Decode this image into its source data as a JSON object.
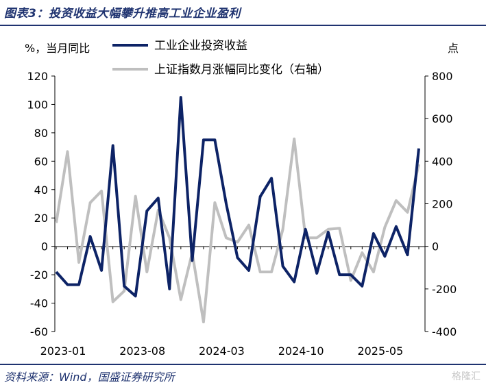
{
  "figure": {
    "title": "图表3：投资收益大幅攀升推高工业企业盈利",
    "source": "资料来源：Wind，国盛证券研究所",
    "watermark": "格隆汇"
  },
  "chart_data": {
    "type": "line",
    "y_left_unit": "%，当月同比",
    "y_right_unit": "点",
    "ylim_left": [
      -60,
      120
    ],
    "ylim_right": [
      -400,
      800
    ],
    "yticks_left": [
      -60,
      -40,
      -20,
      0,
      20,
      40,
      60,
      80,
      100,
      120
    ],
    "yticks_right": [
      -400,
      -200,
      0,
      200,
      400,
      600,
      800
    ],
    "x_tick_labels": [
      "2023-01",
      "2023-08",
      "2024-03",
      "2024-10",
      "2025-05"
    ],
    "x_tick_indices": [
      0,
      7,
      14,
      21,
      28
    ],
    "x": [
      "2023-01",
      "2023-02",
      "2023-03",
      "2023-04",
      "2023-05",
      "2023-06",
      "2023-07",
      "2023-08",
      "2023-09",
      "2023-10",
      "2023-11",
      "2023-12",
      "2024-01",
      "2024-02",
      "2024-03",
      "2024-04",
      "2024-05",
      "2024-06",
      "2024-07",
      "2024-08",
      "2024-09",
      "2024-10",
      "2024-11",
      "2024-12",
      "2025-01",
      "2025-02",
      "2025-03",
      "2025-04",
      "2025-05",
      "2025-06",
      "2025-07",
      "2025-08",
      "2025-09"
    ],
    "legend_position": "top",
    "grid": false,
    "series": [
      {
        "name": "工业企业投资收益",
        "axis": "left",
        "color": "#0d2366",
        "values": [
          -18,
          -27,
          -27,
          7,
          -17,
          71,
          -28,
          -35,
          25,
          34,
          -30,
          105,
          -10,
          75,
          75,
          30,
          -8,
          -17,
          35,
          48,
          -14,
          -25,
          12,
          -19,
          10,
          -20,
          -20,
          -28,
          9,
          -7,
          14,
          -6,
          69
        ]
      },
      {
        "name": "上证指数月涨幅同比变化（右轴）",
        "axis": "right",
        "color": "#bfbfbf",
        "values": [
          110,
          445,
          -75,
          205,
          260,
          -260,
          -210,
          235,
          -120,
          170,
          40,
          -250,
          -30,
          -355,
          205,
          40,
          20,
          100,
          -120,
          -120,
          80,
          505,
          40,
          40,
          80,
          85,
          -160,
          -30,
          -120,
          90,
          215,
          160,
          385
        ]
      }
    ]
  }
}
